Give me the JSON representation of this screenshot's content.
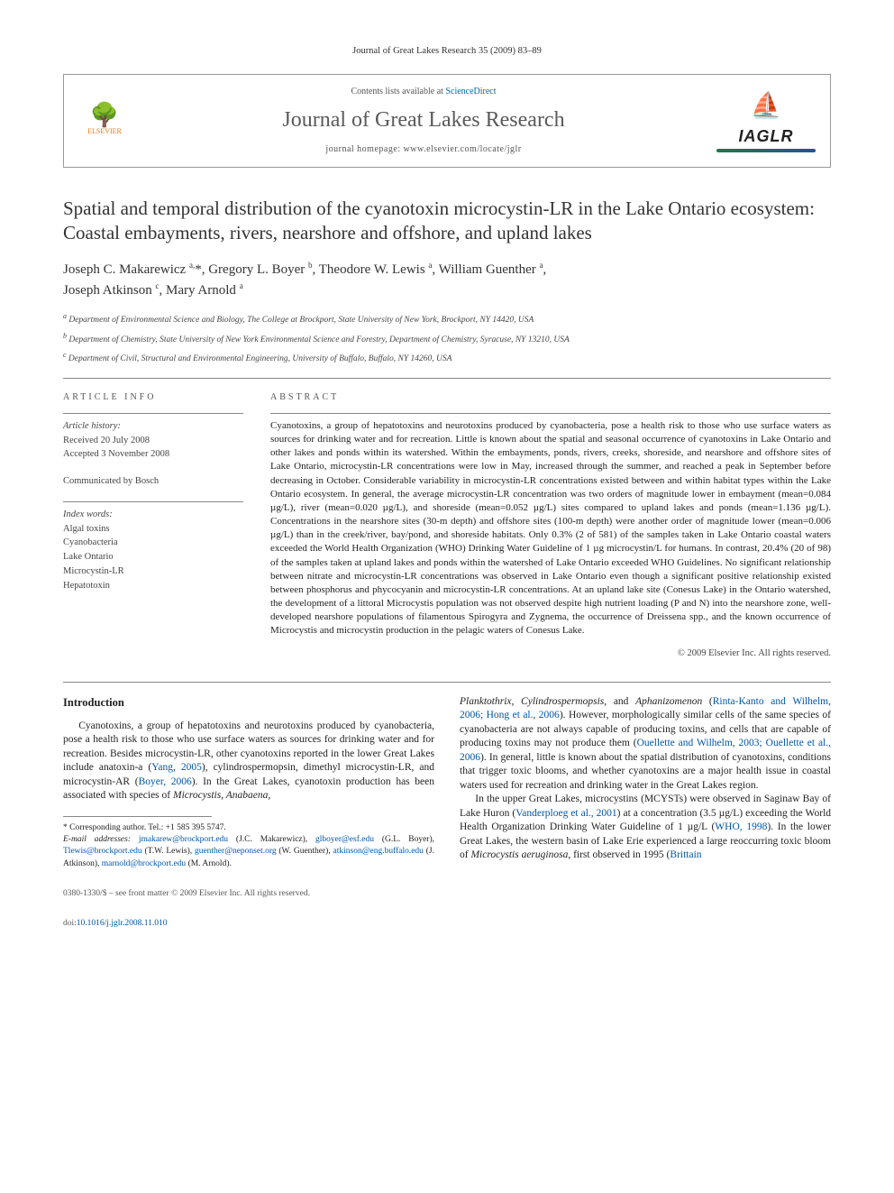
{
  "running_head": "Journal of Great Lakes Research 35 (2009) 83–89",
  "header": {
    "contents_prefix": "Contents lists available at ",
    "contents_link": "ScienceDirect",
    "journal_name": "Journal of Great Lakes Research",
    "homepage_prefix": "journal homepage: ",
    "homepage_url": "www.elsevier.com/locate/jglr",
    "elsevier_label": "ELSEVIER",
    "iaglr_label": "IAGLR"
  },
  "title": "Spatial and temporal distribution of the cyanotoxin microcystin-LR in the Lake Ontario ecosystem: Coastal embayments, rivers, nearshore and offshore, and upland lakes",
  "authors_html": "Joseph C. Makarewicz <sup>a,</sup>*, Gregory L. Boyer <sup>b</sup>, Theodore W. Lewis <sup>a</sup>, William Guenther <sup>a</sup>, Joseph Atkinson <sup>c</sup>, Mary Arnold <sup>a</sup>",
  "affiliations": {
    "a": "Department of Environmental Science and Biology, The College at Brockport, State University of New York, Brockport, NY 14420, USA",
    "b": "Department of Chemistry, State University of New York Environmental Science and Forestry, Department of Chemistry, Syracuse, NY 13210, USA",
    "c": "Department of Civil, Structural and Environmental Engineering, University of Buffalo, Buffalo, NY 14260, USA"
  },
  "article_info": {
    "label": "ARTICLE INFO",
    "history_title": "Article history:",
    "received": "Received 20 July 2008",
    "accepted": "Accepted 3 November 2008",
    "communicated": "Communicated by Bosch",
    "index_title": "Index words:",
    "index_words": [
      "Algal toxins",
      "Cyanobacteria",
      "Lake Ontario",
      "Microcystin-LR",
      "Hepatotoxin"
    ]
  },
  "abstract": {
    "label": "ABSTRACT",
    "text": "Cyanotoxins, a group of hepatotoxins and neurotoxins produced by cyanobacteria, pose a health risk to those who use surface waters as sources for drinking water and for recreation. Little is known about the spatial and seasonal occurrence of cyanotoxins in Lake Ontario and other lakes and ponds within its watershed. Within the embayments, ponds, rivers, creeks, shoreside, and nearshore and offshore sites of Lake Ontario, microcystin-LR concentrations were low in May, increased through the summer, and reached a peak in September before decreasing in October. Considerable variability in microcystin-LR concentrations existed between and within habitat types within the Lake Ontario ecosystem. In general, the average microcystin-LR concentration was two orders of magnitude lower in embayment (mean=0.084 µg/L), river (mean=0.020 µg/L), and shoreside (mean=0.052 µg/L) sites compared to upland lakes and ponds (mean=1.136 µg/L). Concentrations in the nearshore sites (30-m depth) and offshore sites (100-m depth) were another order of magnitude lower (mean=0.006 µg/L) than in the creek/river, bay/pond, and shoreside habitats. Only 0.3% (2 of 581) of the samples taken in Lake Ontario coastal waters exceeded the World Health Organization (WHO) Drinking Water Guideline of 1 µg microcystin/L for humans. In contrast, 20.4% (20 of 98) of the samples taken at upland lakes and ponds within the watershed of Lake Ontario exceeded WHO Guidelines. No significant relationship between nitrate and microcystin-LR concentrations was observed in Lake Ontario even though a significant positive relationship existed between phosphorus and phycocyanin and microcystin-LR concentrations. At an upland lake site (Conesus Lake) in the Ontario watershed, the development of a littoral Microcystis population was not observed despite high nutrient loading (P and N) into the nearshore zone, well-developed nearshore populations of filamentous Spirogyra and Zygnema, the occurrence of Dreissena spp., and the known occurrence of Microcystis and microcystin production in the pelagic waters of Conesus Lake.",
    "copyright": "© 2009 Elsevier Inc. All rights reserved."
  },
  "body": {
    "intro_heading": "Introduction",
    "p1": "Cyanotoxins, a group of hepatotoxins and neurotoxins produced by cyanobacteria, pose a health risk to those who use surface waters as sources for drinking water and for recreation. Besides microcystin-LR, other cyanotoxins reported in the lower Great Lakes include anatoxin-a (Yang, 2005), cylindrospermopsin, dimethyl microcystin-LR, and microcystin-AR (Boyer, 2006). In the Great Lakes, cyanotoxin production has been associated with species of Microcystis, Anabaena,",
    "p2": "Planktothrix, Cylindrospermopsis, and Aphanizomenon (Rinta-Kanto and Wilhelm, 2006; Hong et al., 2006). However, morphologically similar cells of the same species of cyanobacteria are not always capable of producing toxins, and cells that are capable of producing toxins may not produce them (Ouellette and Wilhelm, 2003; Ouellette et al., 2006). In general, little is known about the spatial distribution of cyanotoxins, conditions that trigger toxic blooms, and whether cyanotoxins are a major health issue in coastal waters used for recreation and drinking water in the Great Lakes region.",
    "p3": "In the upper Great Lakes, microcystins (MCYSTs) were observed in Saginaw Bay of Lake Huron (Vanderploeg et al., 2001) at a concentration (3.5 µg/L) exceeding the World Health Organization Drinking Water Guideline of 1 µg/L (WHO, 1998). In the lower Great Lakes, the western basin of Lake Erie experienced a large reoccurring toxic bloom of Microcystis aeruginosa, first observed in 1995 (Brittain"
  },
  "footnotes": {
    "corr": "* Corresponding author. Tel.: +1 585 395 5747.",
    "email_label": "E-mail addresses:",
    "emails": "jmakarew@brockport.edu (J.C. Makarewicz), glboyer@esf.edu (G.L. Boyer), Tlewis@brockport.edu (T.W. Lewis), guenther@neponset.org (W. Guenther), atkinson@eng.buffalo.edu (J. Atkinson), marnold@brockport.edu (M. Arnold)."
  },
  "bottom": {
    "issn": "0380-1330/$ – see front matter © 2009 Elsevier Inc. All rights reserved.",
    "doi": "doi:10.1016/j.jglr.2008.11.010"
  },
  "colors": {
    "link": "#0055aa",
    "elsevier_orange": "#e67817",
    "iaglr_blue": "#1a5a8a",
    "text": "#222222",
    "rule": "#888888"
  }
}
